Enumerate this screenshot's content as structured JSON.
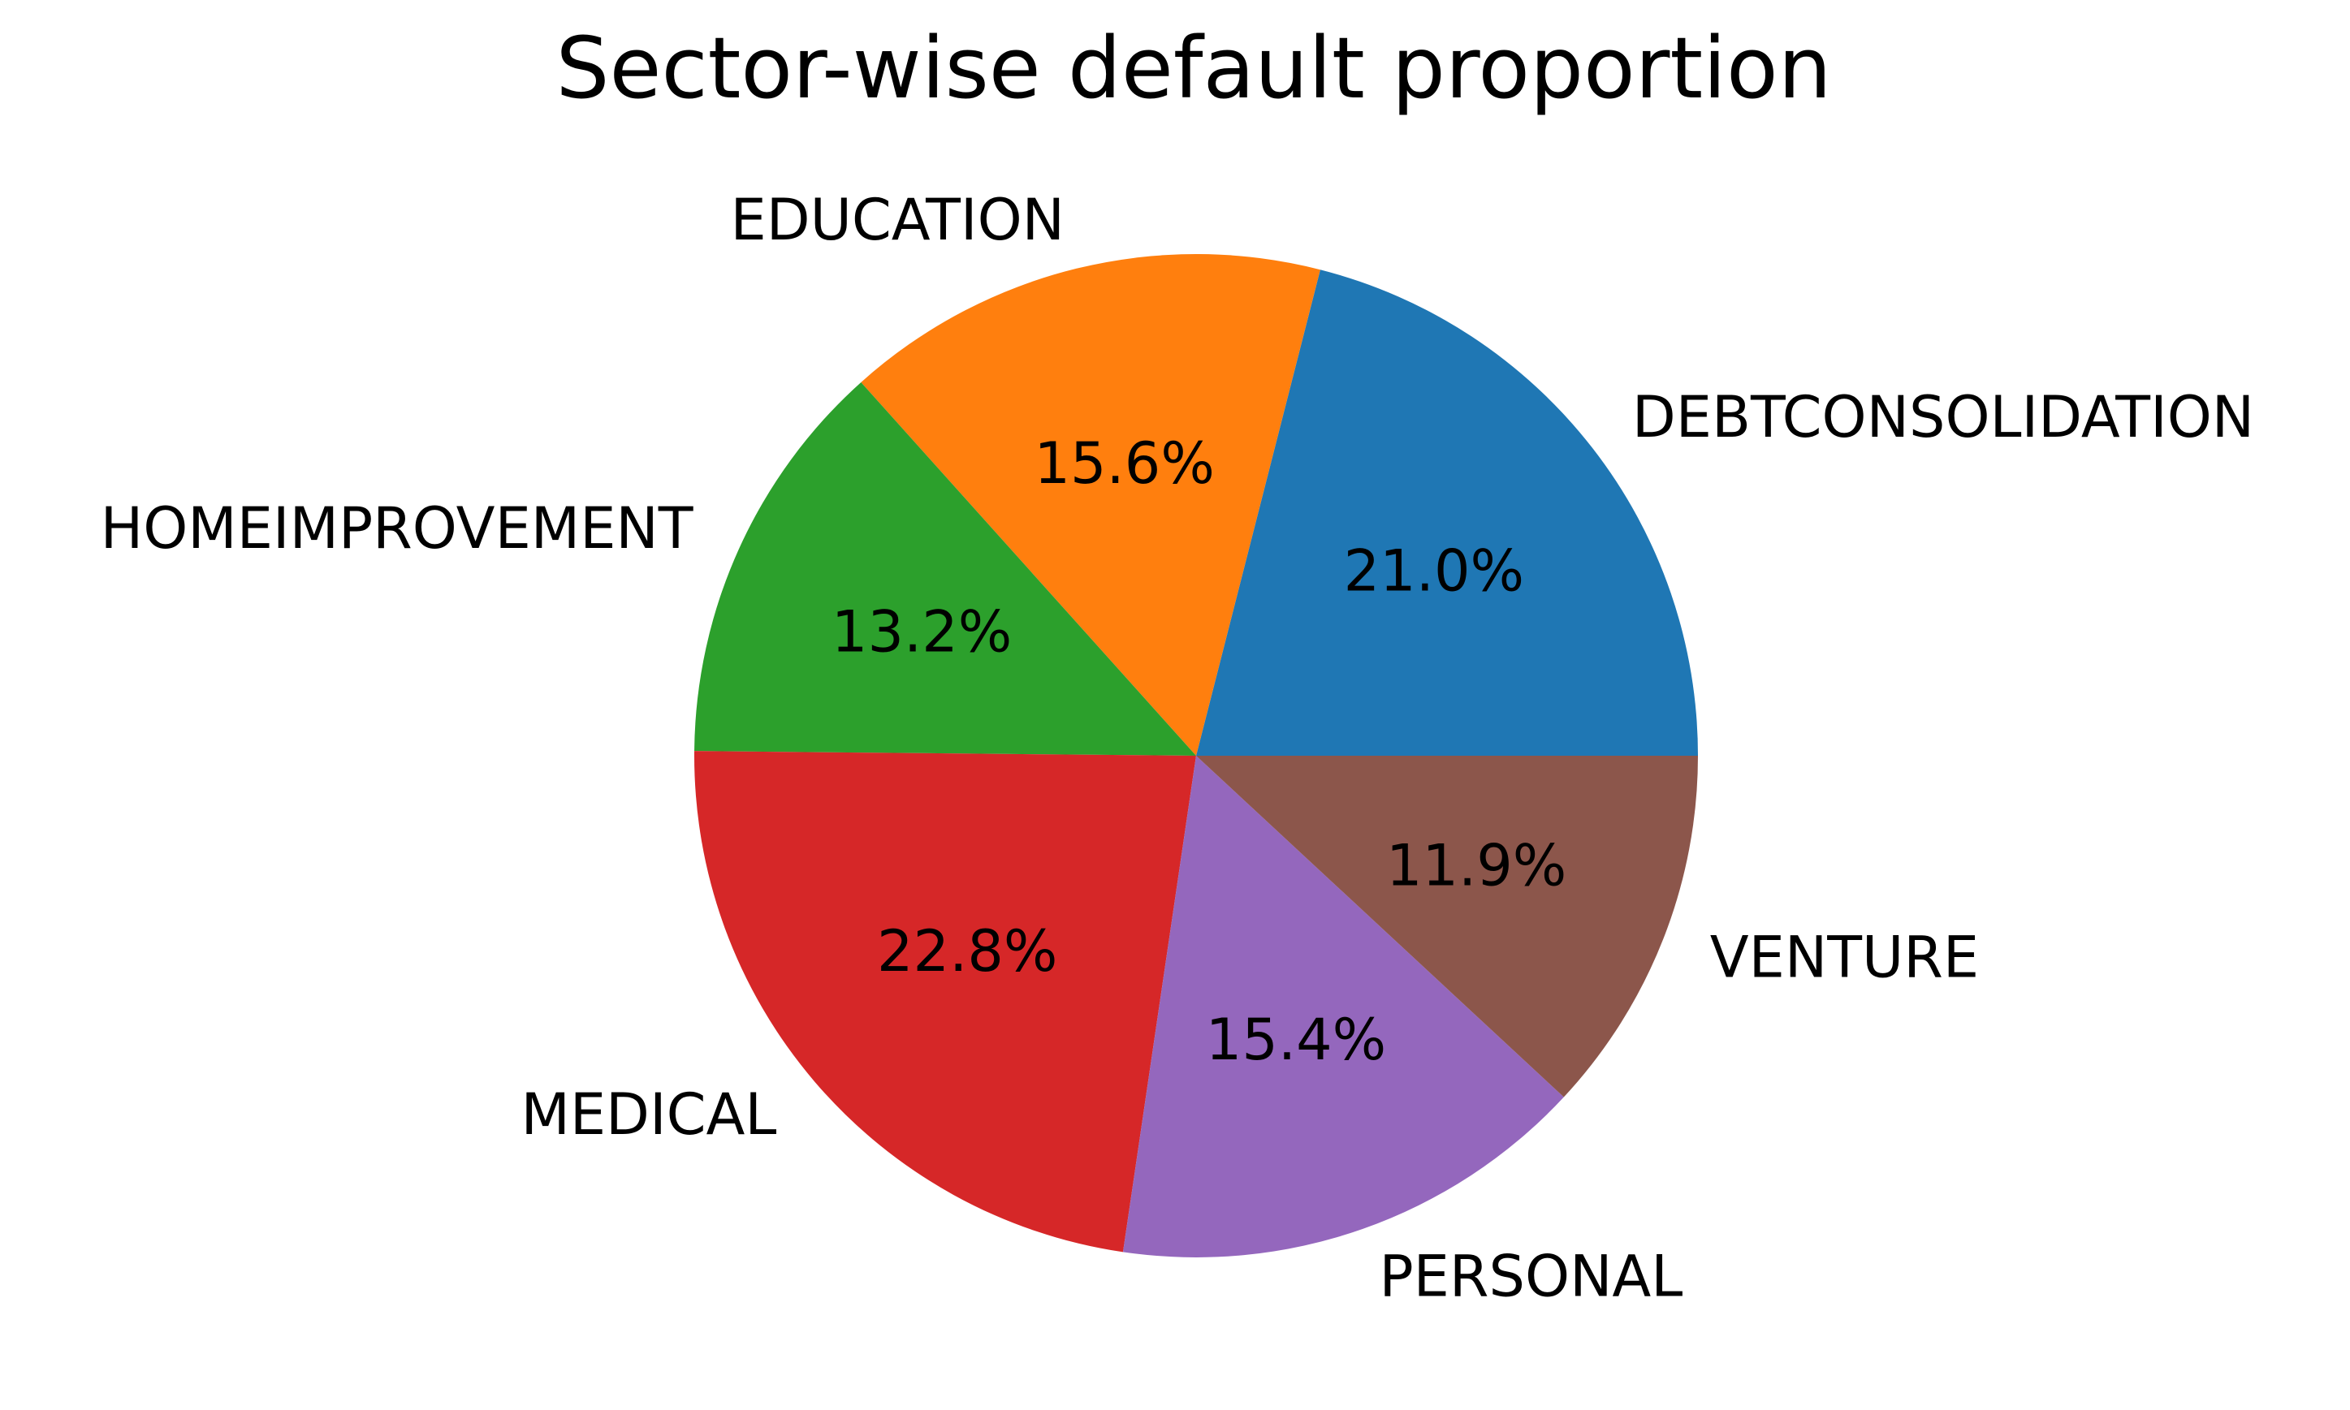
{
  "chart_data": {
    "type": "pie",
    "title": "Sector-wise default proportion",
    "start_angle_deg": 0,
    "direction": "counterclockwise",
    "slices": [
      {
        "label": "DEBTCONSOLIDATION",
        "value": 21.0,
        "pct_label": "21.0%",
        "color": "#1f77b4"
      },
      {
        "label": "EDUCATION",
        "value": 15.6,
        "pct_label": "15.6%",
        "color": "#ff7f0e"
      },
      {
        "label": "HOMEIMPROVEMENT",
        "value": 13.2,
        "pct_label": "13.2%",
        "color": "#2ca02c"
      },
      {
        "label": "MEDICAL",
        "value": 22.8,
        "pct_label": "22.8%",
        "color": "#d62728"
      },
      {
        "label": "PERSONAL",
        "value": 15.4,
        "pct_label": "15.4%",
        "color": "#9467bd"
      },
      {
        "label": "VENTURE",
        "value": 11.9,
        "pct_label": "11.9%",
        "color": "#8c564b"
      }
    ]
  }
}
